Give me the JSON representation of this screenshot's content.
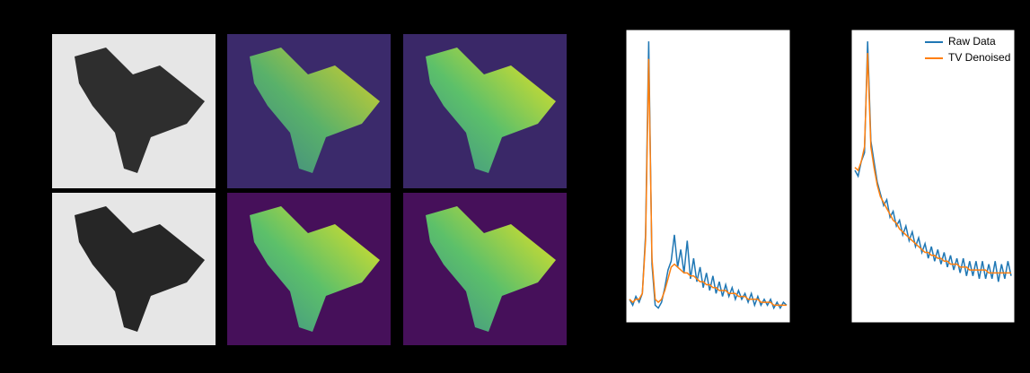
{
  "chart_data": [
    {
      "type": "line",
      "ylim": [
        0,
        1
      ],
      "series": [
        {
          "color": "#1f77b4",
          "values": [
            0.08,
            0.06,
            0.09,
            0.07,
            0.1,
            0.3,
            0.96,
            0.2,
            0.06,
            0.05,
            0.07,
            0.12,
            0.18,
            0.21,
            0.3,
            0.19,
            0.25,
            0.17,
            0.28,
            0.15,
            0.22,
            0.14,
            0.19,
            0.12,
            0.17,
            0.11,
            0.16,
            0.1,
            0.14,
            0.09,
            0.13,
            0.09,
            0.12,
            0.08,
            0.11,
            0.08,
            0.1,
            0.07,
            0.1,
            0.06,
            0.09,
            0.06,
            0.08,
            0.06,
            0.08,
            0.05,
            0.07,
            0.05,
            0.07,
            0.06
          ]
        },
        {
          "color": "#ff7f0e",
          "values": [
            0.08,
            0.07,
            0.08,
            0.08,
            0.1,
            0.28,
            0.9,
            0.22,
            0.08,
            0.07,
            0.08,
            0.11,
            0.15,
            0.19,
            0.2,
            0.19,
            0.18,
            0.17,
            0.17,
            0.16,
            0.16,
            0.15,
            0.14,
            0.14,
            0.13,
            0.13,
            0.12,
            0.12,
            0.11,
            0.11,
            0.11,
            0.1,
            0.1,
            0.1,
            0.09,
            0.09,
            0.09,
            0.08,
            0.08,
            0.08,
            0.08,
            0.07,
            0.07,
            0.07,
            0.07,
            0.06,
            0.06,
            0.06,
            0.06,
            0.06
          ]
        }
      ]
    },
    {
      "type": "line",
      "ylim": [
        0,
        1
      ],
      "legend": "upper right",
      "series": [
        {
          "name": "Raw Data",
          "color": "#1f77b4",
          "values": [
            0.52,
            0.5,
            0.55,
            0.58,
            0.96,
            0.62,
            0.55,
            0.48,
            0.44,
            0.4,
            0.42,
            0.36,
            0.38,
            0.33,
            0.35,
            0.3,
            0.33,
            0.28,
            0.31,
            0.26,
            0.29,
            0.24,
            0.27,
            0.22,
            0.26,
            0.21,
            0.25,
            0.2,
            0.24,
            0.19,
            0.23,
            0.18,
            0.22,
            0.17,
            0.22,
            0.16,
            0.21,
            0.16,
            0.21,
            0.15,
            0.21,
            0.15,
            0.2,
            0.15,
            0.21,
            0.14,
            0.2,
            0.15,
            0.21,
            0.16
          ]
        },
        {
          "name": "TV Denoised",
          "color": "#ff7f0e",
          "values": [
            0.53,
            0.52,
            0.55,
            0.6,
            0.92,
            0.6,
            0.53,
            0.47,
            0.43,
            0.41,
            0.39,
            0.37,
            0.35,
            0.34,
            0.32,
            0.31,
            0.3,
            0.29,
            0.28,
            0.27,
            0.26,
            0.25,
            0.24,
            0.24,
            0.23,
            0.23,
            0.22,
            0.22,
            0.21,
            0.21,
            0.2,
            0.2,
            0.2,
            0.19,
            0.19,
            0.19,
            0.18,
            0.18,
            0.18,
            0.18,
            0.18,
            0.18,
            0.17,
            0.17,
            0.17,
            0.17,
            0.17,
            0.17,
            0.17,
            0.17
          ]
        }
      ]
    }
  ]
}
